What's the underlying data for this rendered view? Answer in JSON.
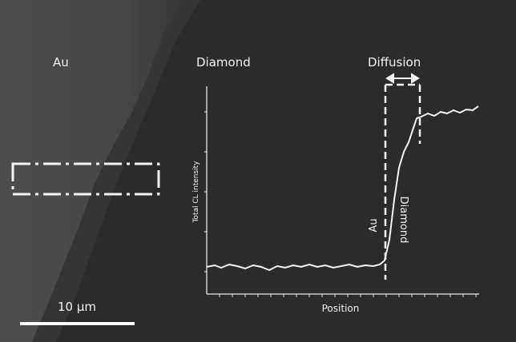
{
  "labels": {
    "au": "Au",
    "diamond": "Diamond",
    "diffusion": "Diffusion"
  },
  "scale_bar": "10 µm",
  "plot": {
    "y_label": "Total CL intensity",
    "x_label": "Position",
    "au_marker": "Au",
    "diamond_marker": "Diamond"
  }
}
